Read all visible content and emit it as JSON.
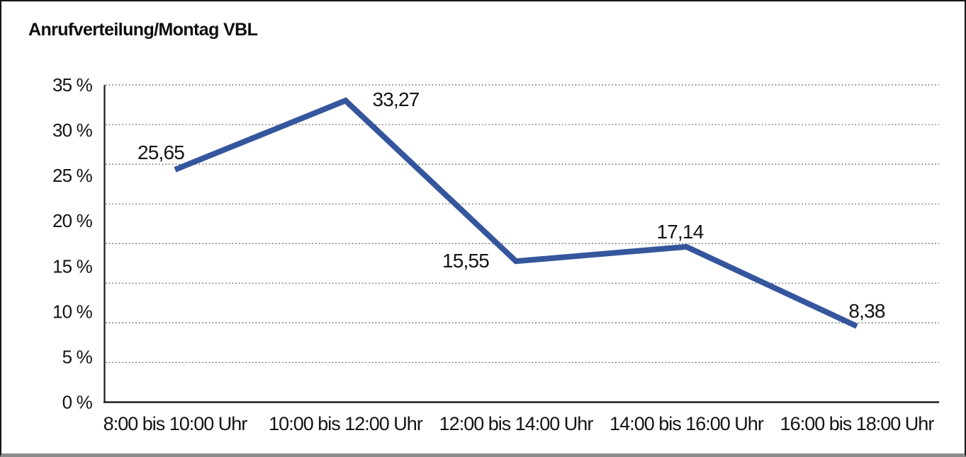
{
  "title": "Anrufverteilung/Montag VBL",
  "colors": {
    "line": "#35569D",
    "axis": "#1a1a1a",
    "grid": "#3d3d3d",
    "text": "#141414",
    "background": "#ffffff",
    "border": "#161616"
  },
  "chart_data": {
    "type": "line",
    "title": "Anrufverteilung/Montag VBL",
    "categories": [
      "8:00 bis 10:00 Uhr",
      "10:00 bis 12:00 Uhr",
      "12:00 bis 14:00 Uhr",
      "14:00 bis 16:00 Uhr",
      "16:00 bis 18:00 Uhr"
    ],
    "values": [
      25.65,
      33.27,
      15.55,
      17.14,
      8.38
    ],
    "value_labels": [
      "25,65",
      "33,27",
      "15,55",
      "17,14",
      "8,38"
    ],
    "ylabel": "",
    "xlabel": "",
    "ylim": [
      0,
      35
    ],
    "y_tick_step": 5,
    "y_tick_labels": [
      "35 %",
      "30 %",
      "25 %",
      "20 %",
      "15 %",
      "10 %",
      "5 %",
      "0 %"
    ],
    "grid": "dotted-horizontal",
    "grid_divisions": 8,
    "legend": "none",
    "series_name": "Anrufverteilung Montag VBL",
    "line_color": "#35569D"
  }
}
